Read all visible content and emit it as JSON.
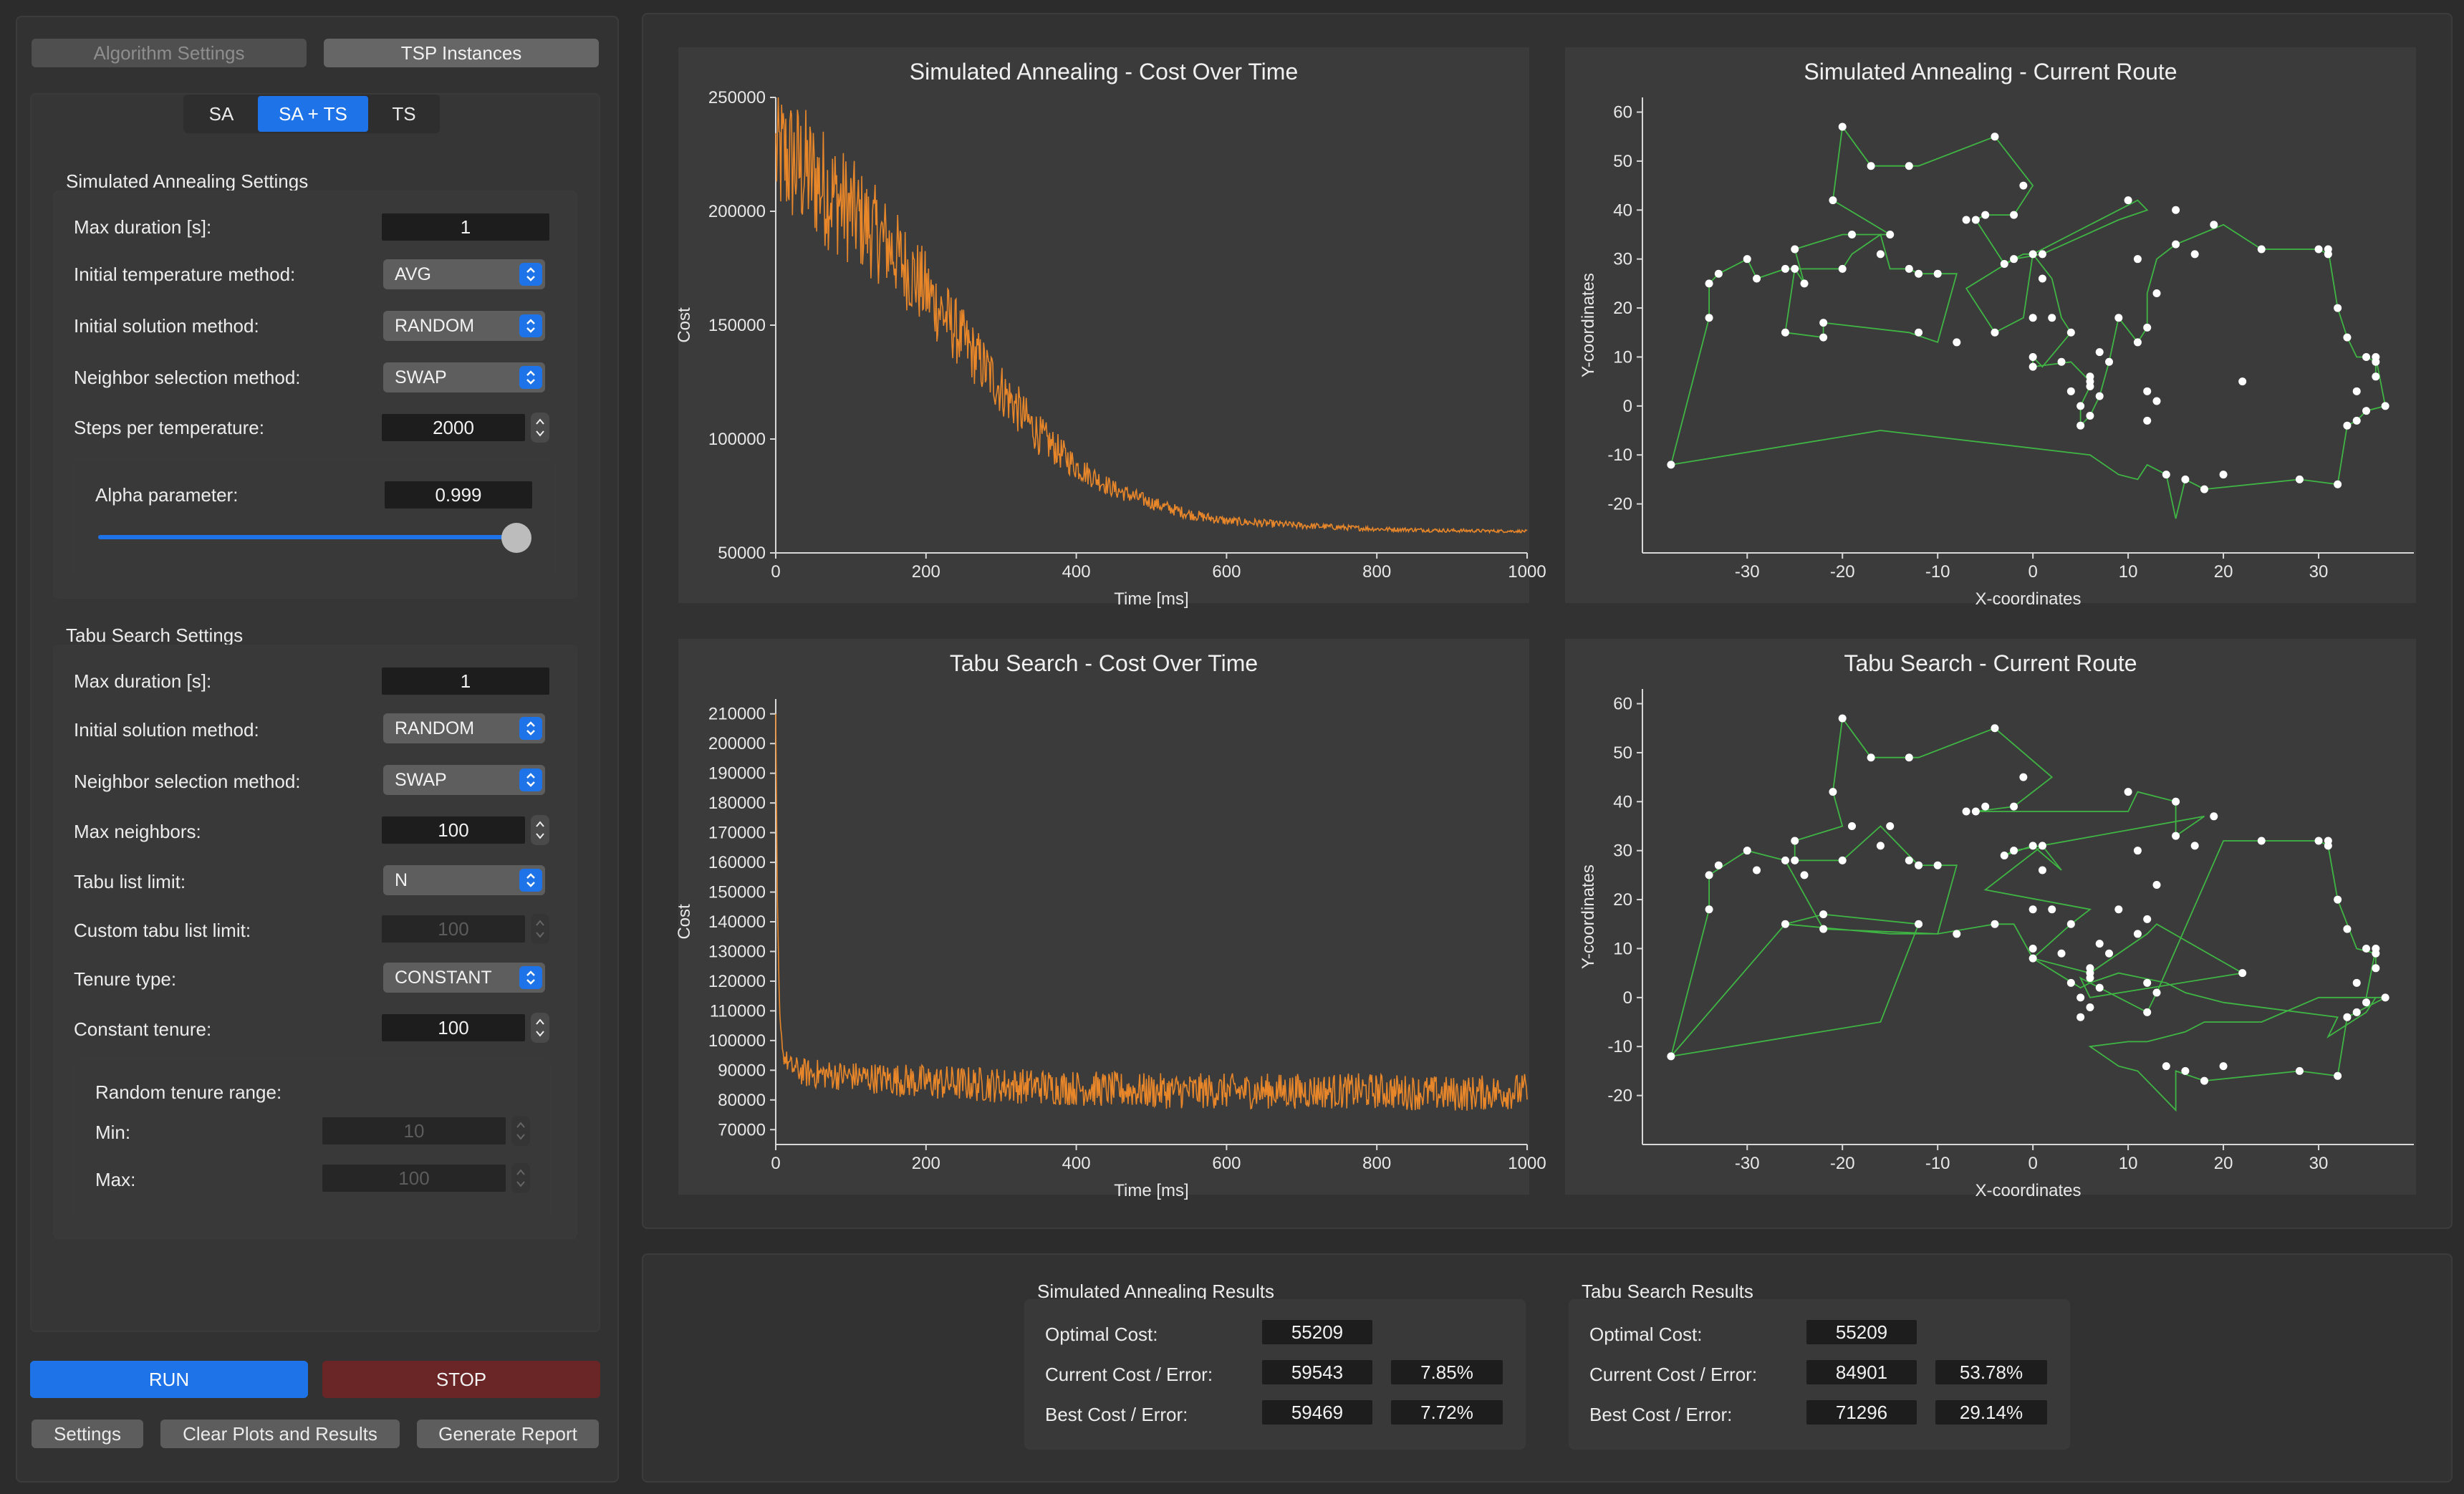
{
  "top_tabs": {
    "algorithm_settings": "Algorithm Settings",
    "tsp_instances": "TSP Instances"
  },
  "algo_tabs": [
    "SA",
    "SA + TS",
    "TS"
  ],
  "algo_tab_selected": "SA + TS",
  "sa_settings": {
    "title": "Simulated Annealing Settings",
    "max_duration_label": "Max duration [s]:",
    "max_duration": "1",
    "init_temp_label": "Initial temperature method:",
    "init_temp": "AVG",
    "init_solution_label": "Initial solution method:",
    "init_solution": "RANDOM",
    "neighbor_label": "Neighbor selection method:",
    "neighbor": "SWAP",
    "steps_label": "Steps per temperature:",
    "steps": "2000",
    "alpha_label": "Alpha parameter:",
    "alpha": "0.999"
  },
  "ts_settings": {
    "title": "Tabu Search Settings",
    "max_duration_label": "Max duration [s]:",
    "max_duration": "1",
    "init_solution_label": "Initial solution method:",
    "init_solution": "RANDOM",
    "neighbor_label": "Neighbor selection method:",
    "neighbor": "SWAP",
    "max_neighbors_label": "Max neighbors:",
    "max_neighbors": "100",
    "tabu_limit_label": "Tabu list limit:",
    "tabu_limit": "N",
    "custom_tabu_label": "Custom tabu list limit:",
    "custom_tabu": "100",
    "tenure_type_label": "Tenure type:",
    "tenure_type": "CONSTANT",
    "constant_tenure_label": "Constant tenure:",
    "constant_tenure": "100",
    "random_range_label": "Random tenure range:",
    "min_label": "Min:",
    "min": "10",
    "max_label": "Max:",
    "max": "100"
  },
  "buttons": {
    "run": "RUN",
    "stop": "STOP",
    "settings": "Settings",
    "clear": "Clear Plots and Results",
    "report": "Generate Report"
  },
  "colors": {
    "accent": "#1f73e8",
    "stop": "#6a2626",
    "cost_line": "#e8862a",
    "route_line": "#3fb544",
    "city": "#ffffff"
  },
  "results": {
    "sa": {
      "title": "Simulated Annealing Results",
      "optimal_label": "Optimal Cost:",
      "optimal": "55209",
      "current_label": "Current Cost / Error:",
      "current_cost": "59543",
      "current_error": "7.85%",
      "best_label": "Best Cost / Error:",
      "best_cost": "59469",
      "best_error": "7.72%"
    },
    "ts": {
      "title": "Tabu Search Results",
      "optimal_label": "Optimal Cost:",
      "optimal": "55209",
      "current_label": "Current Cost / Error:",
      "current_cost": "84901",
      "current_error": "53.78%",
      "best_label": "Best Cost / Error:",
      "best_cost": "71296",
      "best_error": "29.14%"
    }
  },
  "chart_data": [
    {
      "id": "sa_cost",
      "type": "line",
      "title": "Simulated Annealing - Cost Over Time",
      "xlabel": "Time [ms]",
      "ylabel": "Cost",
      "xlim": [
        0,
        1000
      ],
      "ylim": [
        50000,
        250000
      ],
      "xticks": [
        0,
        200,
        400,
        600,
        800,
        1000
      ],
      "yticks": [
        50000,
        100000,
        150000,
        200000,
        250000
      ],
      "x": [
        0,
        20,
        50,
        100,
        150,
        200,
        250,
        300,
        350,
        400,
        450,
        500,
        550,
        600,
        700,
        800,
        900,
        1000
      ],
      "y": [
        225000,
        222000,
        215000,
        200000,
        185000,
        165000,
        143000,
        122000,
        102000,
        88000,
        78000,
        72000,
        67000,
        64000,
        62000,
        60500,
        59800,
        59500
      ],
      "noise": [
        30000,
        30000,
        28000,
        24000,
        20000,
        18000,
        14000,
        12000,
        9000,
        6000,
        4000,
        3000,
        2500,
        2000,
        1500,
        1000,
        800,
        600
      ]
    },
    {
      "id": "ts_cost",
      "type": "line",
      "title": "Tabu Search - Cost Over Time",
      "xlabel": "Time [ms]",
      "ylabel": "Cost",
      "xlim": [
        0,
        1000
      ],
      "ylim": [
        65000,
        215000
      ],
      "xticks": [
        0,
        200,
        400,
        600,
        800,
        1000
      ],
      "yticks": [
        70000,
        80000,
        90000,
        100000,
        110000,
        120000,
        130000,
        140000,
        150000,
        160000,
        170000,
        180000,
        190000,
        200000,
        210000
      ],
      "x": [
        0,
        2,
        5,
        10,
        20,
        40,
        100,
        200,
        300,
        400,
        500,
        600,
        700,
        800,
        900,
        1000
      ],
      "y": [
        210000,
        150000,
        110000,
        95000,
        91000,
        89000,
        88000,
        86000,
        85000,
        84000,
        83000,
        83000,
        83000,
        83000,
        82000,
        83000
      ],
      "noise": [
        0,
        0,
        0,
        3000,
        4000,
        5000,
        5000,
        6000,
        6000,
        6000,
        6000,
        6000,
        6000,
        6000,
        6000,
        6000
      ]
    },
    {
      "id": "sa_route",
      "type": "scatter",
      "title": "Simulated Annealing - Current Route",
      "xlabel": "X-coordinates",
      "ylabel": "Y-coordinates",
      "xlim": [
        -41,
        40
      ],
      "ylim": [
        -30,
        63
      ],
      "xticks": [
        -30,
        -20,
        -10,
        0,
        10,
        20,
        30
      ],
      "yticks": [
        -20,
        -10,
        0,
        10,
        20,
        30,
        40,
        50,
        60
      ],
      "x": [
        -38,
        -34,
        -34,
        -33,
        -30,
        -29,
        -26,
        -26,
        -25,
        -25,
        -24,
        -22,
        -22,
        -21,
        -20,
        -20,
        -19,
        -17,
        -16,
        -15,
        -13,
        -13,
        -12,
        -12,
        -10,
        -8,
        -7,
        -6,
        -5,
        -4,
        -4,
        -3,
        -2,
        -2,
        -1,
        0,
        0,
        0,
        0,
        1,
        1,
        2,
        3,
        4,
        4,
        5,
        5,
        6,
        6,
        6,
        6,
        7,
        7,
        8,
        9,
        10,
        11,
        11,
        12,
        12,
        12,
        13,
        13,
        14,
        15,
        15,
        16,
        17,
        18,
        19,
        20,
        22,
        24,
        28,
        30,
        31,
        31,
        32,
        32,
        33,
        33,
        34,
        34,
        35,
        35,
        36,
        36,
        36,
        37
      ],
      "y": [
        -12,
        18,
        25,
        27,
        30,
        26,
        28,
        15,
        32,
        28,
        25,
        14,
        17,
        42,
        57,
        28,
        35,
        49,
        31,
        35,
        28,
        49,
        27,
        15,
        27,
        13,
        38,
        38,
        39,
        55,
        15,
        29,
        39,
        30,
        45,
        18,
        31,
        10,
        8,
        31,
        26,
        18,
        9,
        15,
        3,
        0,
        -4,
        -2,
        4,
        5,
        6,
        2,
        11,
        9,
        18,
        42,
        30,
        13,
        3,
        -3,
        16,
        1,
        23,
        -14,
        33,
        40,
        -15,
        31,
        -17,
        37,
        -14,
        5,
        32,
        -15,
        32,
        31,
        32,
        20,
        -16,
        14,
        -4,
        -3,
        3,
        10,
        -1,
        9,
        6,
        10,
        0
      ],
      "route": [
        [
          -38,
          -12
        ],
        [
          -34,
          18
        ],
        [
          -34,
          25
        ],
        [
          -33,
          27
        ],
        [
          -30,
          30
        ],
        [
          -29,
          26
        ],
        [
          -26,
          28
        ],
        [
          -25,
          28
        ],
        [
          -26,
          15
        ],
        [
          -22,
          14
        ],
        [
          -22,
          17
        ],
        [
          -13,
          15
        ],
        [
          -10,
          13
        ],
        [
          -8,
          27
        ],
        [
          -12,
          27
        ],
        [
          -13,
          28
        ],
        [
          -15,
          28
        ],
        [
          -16,
          35
        ],
        [
          -19,
          31
        ],
        [
          -20,
          28
        ],
        [
          -25,
          28
        ],
        [
          -24,
          25
        ],
        [
          -25,
          32
        ],
        [
          -20,
          35
        ],
        [
          -15,
          35
        ],
        [
          -21,
          42
        ],
        [
          -20,
          57
        ],
        [
          -17,
          49
        ],
        [
          -12,
          49
        ],
        [
          -4,
          55
        ],
        [
          0,
          45
        ],
        [
          -2,
          39
        ],
        [
          -5,
          39
        ],
        [
          -6,
          38
        ],
        [
          -3,
          29
        ],
        [
          -1,
          31
        ],
        [
          0,
          31
        ],
        [
          11,
          42
        ],
        [
          12,
          40
        ],
        [
          9,
          38
        ],
        [
          1,
          31
        ],
        [
          -2,
          30
        ],
        [
          -7,
          24
        ],
        [
          -4,
          15
        ],
        [
          -1,
          18
        ],
        [
          0,
          31
        ],
        [
          2,
          26
        ],
        [
          3,
          18
        ],
        [
          4,
          15
        ],
        [
          1,
          8
        ],
        [
          0,
          10
        ],
        [
          0,
          8
        ],
        [
          4,
          9
        ],
        [
          6,
          5
        ],
        [
          6,
          4
        ],
        [
          5,
          0
        ],
        [
          5,
          -4
        ],
        [
          6,
          -2
        ],
        [
          7,
          2
        ],
        [
          8,
          9
        ],
        [
          9,
          18
        ],
        [
          11,
          13
        ],
        [
          12,
          16
        ],
        [
          12,
          23
        ],
        [
          13,
          30
        ],
        [
          15,
          33
        ],
        [
          20,
          37
        ],
        [
          24,
          32
        ],
        [
          30,
          32
        ],
        [
          31,
          31
        ],
        [
          31,
          32
        ],
        [
          32,
          20
        ],
        [
          33,
          14
        ],
        [
          34,
          10
        ],
        [
          35,
          10
        ],
        [
          36,
          9
        ],
        [
          36,
          6
        ],
        [
          36,
          10
        ],
        [
          37,
          0
        ],
        [
          35,
          -1
        ],
        [
          34,
          -3
        ],
        [
          33,
          -4
        ],
        [
          32,
          -16
        ],
        [
          28,
          -15
        ],
        [
          18,
          -17
        ],
        [
          16,
          -15
        ],
        [
          15,
          -23
        ],
        [
          14,
          -14
        ],
        [
          12,
          -12
        ],
        [
          11,
          -15
        ],
        [
          9,
          -14
        ],
        [
          6,
          -10
        ],
        [
          -16,
          -5
        ],
        [
          -38,
          -12
        ]
      ]
    },
    {
      "id": "ts_route",
      "type": "scatter",
      "title": "Tabu Search - Current Route",
      "xlabel": "X-coordinates",
      "ylabel": "Y-coordinates",
      "xlim": [
        -41,
        40
      ],
      "ylim": [
        -30,
        63
      ],
      "xticks": [
        -30,
        -20,
        -10,
        0,
        10,
        20,
        30
      ],
      "yticks": [
        -20,
        -10,
        0,
        10,
        20,
        30,
        40,
        50,
        60
      ],
      "x": [
        -38,
        -34,
        -34,
        -33,
        -30,
        -29,
        -26,
        -26,
        -25,
        -25,
        -24,
        -22,
        -22,
        -21,
        -20,
        -20,
        -19,
        -17,
        -16,
        -15,
        -13,
        -13,
        -12,
        -12,
        -10,
        -8,
        -7,
        -6,
        -5,
        -4,
        -4,
        -3,
        -2,
        -2,
        -1,
        0,
        0,
        0,
        0,
        1,
        1,
        2,
        3,
        4,
        4,
        5,
        5,
        6,
        6,
        6,
        6,
        7,
        7,
        8,
        9,
        10,
        11,
        11,
        12,
        12,
        12,
        13,
        13,
        14,
        15,
        15,
        16,
        17,
        18,
        19,
        20,
        22,
        24,
        28,
        30,
        31,
        31,
        32,
        32,
        33,
        33,
        34,
        34,
        35,
        35,
        36,
        36,
        36,
        37
      ],
      "y": [
        -12,
        18,
        25,
        27,
        30,
        26,
        28,
        15,
        32,
        28,
        25,
        14,
        17,
        42,
        57,
        28,
        35,
        49,
        31,
        35,
        28,
        49,
        27,
        15,
        27,
        13,
        38,
        38,
        39,
        55,
        15,
        29,
        39,
        30,
        45,
        18,
        31,
        10,
        8,
        31,
        26,
        18,
        9,
        15,
        3,
        0,
        -4,
        -2,
        4,
        5,
        6,
        2,
        11,
        9,
        18,
        42,
        30,
        13,
        3,
        -3,
        16,
        1,
        23,
        -14,
        33,
        40,
        -15,
        31,
        -17,
        37,
        -14,
        5,
        32,
        -15,
        32,
        31,
        32,
        20,
        -16,
        14,
        -4,
        -3,
        3,
        10,
        -1,
        9,
        6,
        10,
        0
      ],
      "route": [
        [
          -38,
          -12
        ],
        [
          -26,
          15
        ],
        [
          -22,
          17
        ],
        [
          -12,
          15
        ],
        [
          -16,
          -5
        ],
        [
          -38,
          -12
        ],
        [
          -34,
          18
        ],
        [
          -34,
          25
        ],
        [
          -30,
          30
        ],
        [
          -26,
          28
        ],
        [
          -22,
          14
        ],
        [
          -10,
          13
        ],
        [
          -8,
          27
        ],
        [
          -12,
          27
        ],
        [
          -16,
          35
        ],
        [
          -20,
          28
        ],
        [
          -25,
          28
        ],
        [
          -25,
          32
        ],
        [
          -20,
          35
        ],
        [
          -21,
          42
        ],
        [
          -20,
          57
        ],
        [
          -17,
          49
        ],
        [
          -12,
          49
        ],
        [
          -4,
          55
        ],
        [
          2,
          45
        ],
        [
          -2,
          39
        ],
        [
          -6,
          38
        ],
        [
          10,
          38
        ],
        [
          11,
          42
        ],
        [
          15,
          40
        ],
        [
          15,
          33
        ],
        [
          18,
          37
        ],
        [
          -2,
          30
        ],
        [
          -3,
          29
        ],
        [
          0,
          31
        ],
        [
          3,
          26
        ],
        [
          1,
          31
        ],
        [
          -5,
          22
        ],
        [
          6,
          18
        ],
        [
          4,
          15
        ],
        [
          0,
          8
        ],
        [
          6,
          5
        ],
        [
          12,
          13
        ],
        [
          13,
          15
        ],
        [
          22,
          5
        ],
        [
          6,
          0
        ],
        [
          5,
          4
        ],
        [
          12,
          -3
        ],
        [
          13,
          1
        ],
        [
          20,
          32
        ],
        [
          30,
          32
        ],
        [
          31,
          31
        ],
        [
          32,
          20
        ],
        [
          34,
          10
        ],
        [
          36,
          9
        ],
        [
          36,
          6
        ],
        [
          36,
          10
        ],
        [
          35,
          0
        ],
        [
          37,
          0
        ],
        [
          34,
          -3
        ],
        [
          33,
          -4
        ],
        [
          32,
          -16
        ],
        [
          28,
          -15
        ],
        [
          18,
          -17
        ],
        [
          15,
          -15
        ],
        [
          15,
          -23
        ],
        [
          11,
          -15
        ],
        [
          9,
          -14
        ],
        [
          6,
          -10
        ],
        [
          10,
          -9
        ],
        [
          12,
          -9
        ],
        [
          16,
          -7
        ],
        [
          18,
          -5
        ],
        [
          24,
          -5
        ],
        [
          30,
          0
        ],
        [
          36,
          0
        ],
        [
          35,
          -3
        ],
        [
          31,
          -8
        ],
        [
          32,
          -4
        ],
        [
          20,
          -1
        ],
        [
          16,
          1
        ],
        [
          14,
          3
        ],
        [
          9,
          5
        ],
        [
          6,
          3
        ],
        [
          5,
          2
        ],
        [
          0,
          8
        ],
        [
          -2,
          15
        ],
        [
          -4,
          15
        ],
        [
          -10,
          13
        ],
        [
          -15,
          13
        ],
        [
          -26,
          15
        ]
      ]
    }
  ]
}
